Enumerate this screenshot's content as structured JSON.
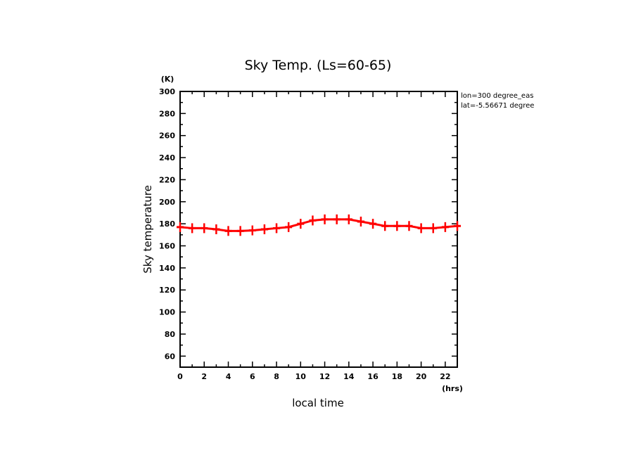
{
  "chart_data": {
    "type": "line",
    "title": "Sky Temp. (Ls=60-65)",
    "xlabel": "local time",
    "ylabel": "Sky temperature",
    "x_unit": "(hrs)",
    "y_unit": "(K)",
    "xlim": [
      0,
      23
    ],
    "ylim": [
      50,
      300
    ],
    "x_ticks": [
      0,
      2,
      4,
      6,
      8,
      10,
      12,
      14,
      16,
      18,
      20,
      22
    ],
    "x_tick_labels": [
      "0",
      "2",
      "4",
      "6",
      "8",
      "10",
      "12",
      "14",
      "16",
      "18",
      "20",
      "22"
    ],
    "y_ticks": [
      60,
      80,
      100,
      120,
      140,
      160,
      180,
      200,
      220,
      240,
      260,
      280,
      300
    ],
    "y_tick_labels": [
      "60",
      "80",
      "100",
      "120",
      "140",
      "160",
      "180",
      "200",
      "220",
      "240",
      "260",
      "280",
      "300"
    ],
    "annotations": [
      "lon=300 degree_eas",
      "lat=-5.56671 degree"
    ],
    "series": [
      {
        "name": "Sky temperature",
        "color": "#ff0000",
        "marker": "plus",
        "x": [
          0,
          1,
          2,
          3,
          4,
          5,
          6,
          7,
          8,
          9,
          10,
          11,
          12,
          13,
          14,
          15,
          16,
          17,
          18,
          19,
          20,
          21,
          22,
          23
        ],
        "values": [
          177,
          176,
          176,
          175,
          173.5,
          173.5,
          174,
          175,
          176,
          177,
          180,
          183,
          184,
          184,
          184,
          182,
          180,
          178,
          178,
          178,
          176,
          176,
          177,
          178
        ]
      }
    ]
  }
}
